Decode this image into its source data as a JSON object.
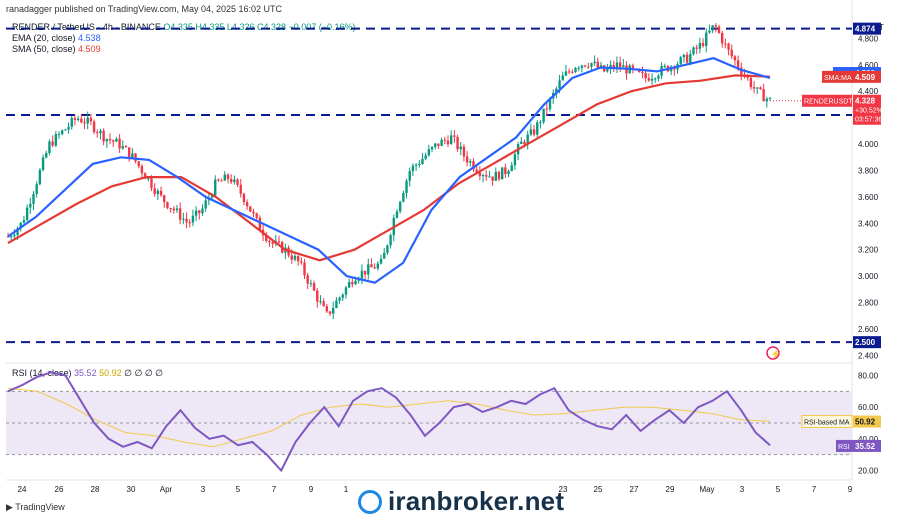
{
  "header": {
    "publisher_line": "ranadagger published on TradingView.com, May 04, 2025 16:02 UTC",
    "footer_brand": "TradingView",
    "watermark": "iranbroker.net"
  },
  "legend": {
    "symbol_line": "RENDER / TetherUS · 4h · BINANCE",
    "ohlc": "O4.335 H4.335 L4.326 C4.328 −0.007 (−0.16%)",
    "ema_label": "EMA (20, close)",
    "ema_value": "4.538",
    "sma_label": "SMA (50, close)",
    "sma_value": "4.509",
    "rsi_label": "RSI (14, close)",
    "rsi_value": "35.52",
    "rsi_ma_value": "50.92",
    "rsi_extra": "∅ ∅ ∅ ∅"
  },
  "colors": {
    "up": "#089981",
    "down": "#f23645",
    "ema": "#2962ff",
    "sma": "#e53935",
    "rsi": "#7e57c2",
    "rsi_ma": "#f2c94c",
    "level": "#0a1a8f",
    "rsi_band": "#ede7f6"
  },
  "chart_data": {
    "type": "candlestick",
    "price_axis": {
      "unit_label": "USDT",
      "ticks": [
        "4.800",
        "4.600",
        "4.400",
        "4.200",
        "4.000",
        "3.800",
        "3.600",
        "3.400",
        "3.200",
        "3.000",
        "2.800",
        "2.600",
        "2.400"
      ],
      "range": [
        2.38,
        5.0
      ]
    },
    "x_axis": {
      "ticks": [
        "24",
        "26",
        "28",
        "30",
        "Apr",
        "3",
        "5",
        "7",
        "9",
        "1",
        "23",
        "25",
        "27",
        "29",
        "May",
        "3",
        "5",
        "7",
        "9"
      ]
    },
    "horizontal_levels": [
      {
        "value": 4.874,
        "label": "4.874"
      },
      {
        "value": 4.22,
        "label": "4.220"
      },
      {
        "value": 2.5,
        "label": "2.500"
      }
    ],
    "price_labels": [
      {
        "name": "EMA",
        "value": "4.538"
      },
      {
        "name": "SMA:MA",
        "value": "4.509"
      },
      {
        "name": "RENDERUSDT",
        "value": "4.328",
        "change": "+30.52%",
        "countdown": "03:57:36"
      }
    ],
    "series_path": [
      3.3,
      3.4,
      3.7,
      4.0,
      4.1,
      4.2,
      4.15,
      4.05,
      4.0,
      3.9,
      3.75,
      3.6,
      3.5,
      3.4,
      3.5,
      3.7,
      3.75,
      3.6,
      3.4,
      3.25,
      3.2,
      3.1,
      2.9,
      2.7,
      2.85,
      3.0,
      3.05,
      3.1,
      3.5,
      3.8,
      3.9,
      4.0,
      4.05,
      3.9,
      3.8,
      3.75,
      3.8,
      4.0,
      4.1,
      4.3,
      4.5,
      4.6,
      4.62,
      4.55,
      4.6,
      4.55,
      4.5,
      4.55,
      4.6,
      4.65,
      4.75,
      4.9,
      4.7,
      4.55,
      4.4,
      4.33
    ],
    "ema_20_path": [
      3.3,
      3.45,
      3.65,
      3.85,
      3.9,
      3.88,
      3.75,
      3.6,
      3.5,
      3.4,
      3.3,
      3.2,
      3.0,
      2.95,
      3.1,
      3.5,
      3.75,
      3.9,
      4.05,
      4.3,
      4.5,
      4.58,
      4.57,
      4.55,
      4.6,
      4.65,
      4.56,
      4.5
    ],
    "sma_50_path": [
      3.25,
      3.4,
      3.55,
      3.68,
      3.75,
      3.75,
      3.6,
      3.4,
      3.2,
      3.12,
      3.2,
      3.35,
      3.5,
      3.7,
      3.85,
      4.0,
      4.15,
      4.3,
      4.4,
      4.46,
      4.48,
      4.52,
      4.51
    ],
    "rsi": {
      "axis_ticks": [
        "80.00",
        "60.00",
        "40.00",
        "20.00"
      ],
      "range": [
        14,
        86
      ],
      "overbought": 70,
      "oversold": 30,
      "mid": 50,
      "value": 35.52,
      "ma_value": 50.92,
      "ma_label": "RSI-based MA",
      "label": "RSI",
      "path": [
        70,
        74,
        79,
        82,
        80,
        65,
        50,
        40,
        35,
        38,
        34,
        48,
        58,
        47,
        40,
        42,
        36,
        38,
        30,
        20,
        38,
        50,
        60,
        48,
        64,
        70,
        72,
        66,
        55,
        42,
        50,
        60,
        62,
        57,
        60,
        64,
        62,
        68,
        72,
        58,
        52,
        48,
        46,
        55,
        45,
        52,
        58,
        50,
        60,
        64,
        70,
        58,
        44,
        36
      ],
      "ma_path": [
        72,
        70,
        62,
        52,
        44,
        42,
        38,
        35,
        40,
        45,
        55,
        60,
        62,
        60,
        62,
        64,
        62,
        58,
        55,
        56,
        58,
        60,
        60,
        58,
        56,
        52,
        51
      ]
    }
  }
}
